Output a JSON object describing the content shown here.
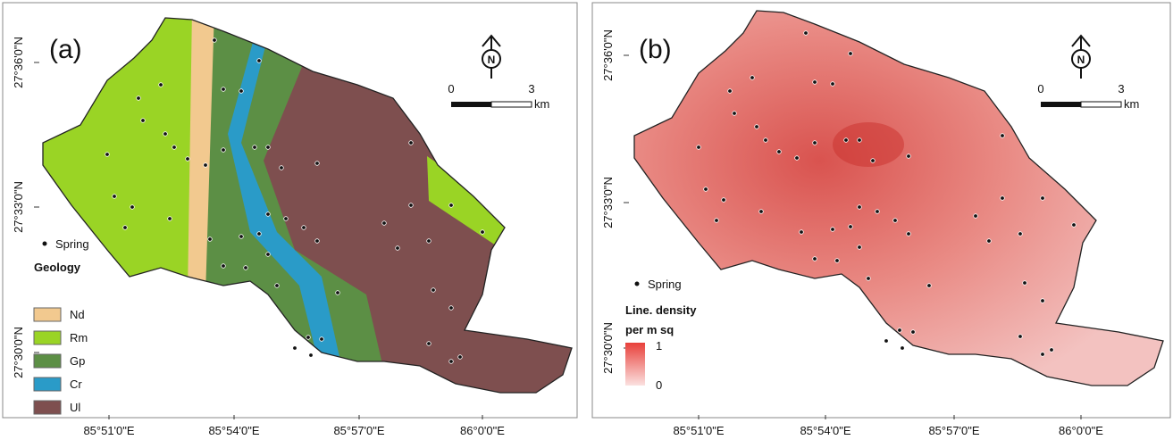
{
  "panels": [
    {
      "label": "(a)",
      "north": "N",
      "scale": {
        "start": "0",
        "end": "3",
        "unit": "km"
      },
      "lat_labels": [
        "27°36'0\"N",
        "27°33'0\"N",
        "27°30'0\"N"
      ],
      "lon_labels": [
        "85°51'0\"E",
        "85°54'0\"E",
        "85°57'0\"E",
        "86°0'0\"E"
      ],
      "legend": {
        "point": "Spring",
        "title": "Geology",
        "classes": [
          {
            "name": "Nd",
            "color": "#f2c98f"
          },
          {
            "name": "Rm",
            "color": "#9ad425"
          },
          {
            "name": "Gp",
            "color": "#5c8f45"
          },
          {
            "name": "Cr",
            "color": "#2a9bc8"
          },
          {
            "name": "Ul",
            "color": "#7e4f4f"
          }
        ]
      }
    },
    {
      "label": "(b)",
      "north": "N",
      "scale": {
        "start": "0",
        "end": "3",
        "unit": "km"
      },
      "lat_labels": [
        "27°36'0\"N",
        "27°33'0\"N",
        "27°30'0\"N"
      ],
      "lon_labels": [
        "85°51'0\"E",
        "85°54'0\"E",
        "85°57'0\"E",
        "86°0'0\"E"
      ],
      "legend": {
        "point": "Spring",
        "title": [
          "Line. density",
          "per m sq"
        ],
        "ramp": {
          "max": 1,
          "min": 0,
          "max_color": "#e8403a",
          "min_color": "#fbe1e0"
        }
      }
    }
  ]
}
